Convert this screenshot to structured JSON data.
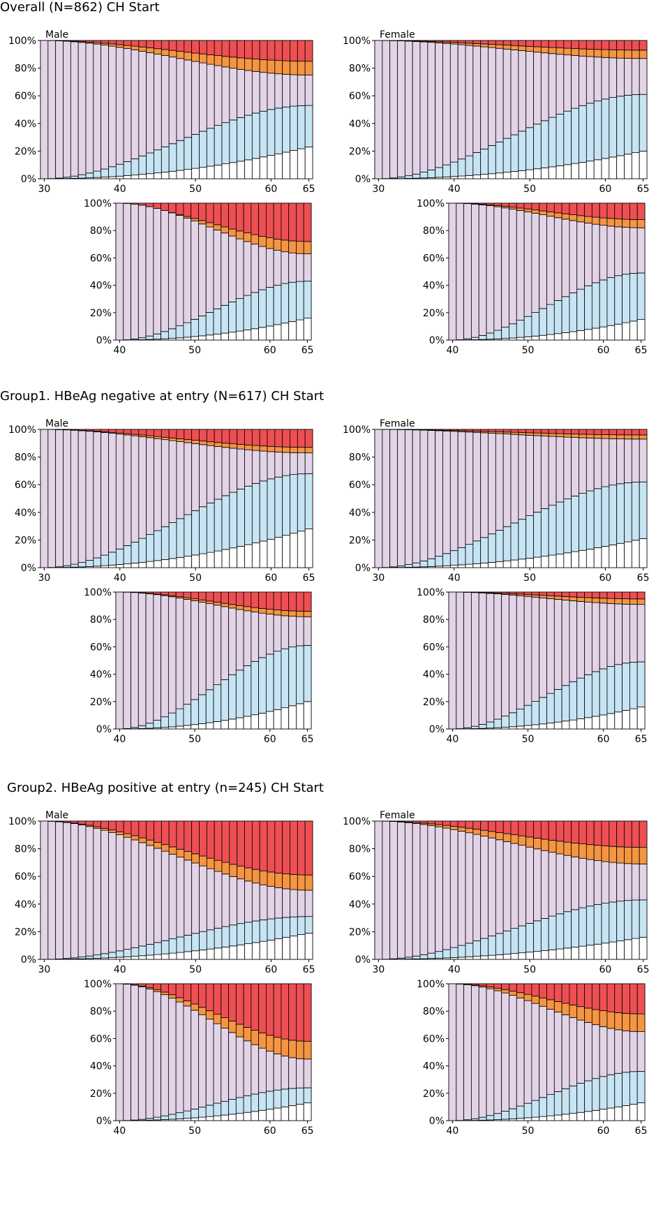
{
  "sections": [
    {
      "title": "Overall  (N=862)  CH Start"
    },
    {
      "title": "Group1. HBeAg negative at entry (N=617)  CH Start"
    },
    {
      "title": "Group2. HBeAg positive at entry (n=245) CH Start"
    }
  ],
  "colors": {
    "white": "#ffffff",
    "blue": "#c7e4f4",
    "lavender": "#e3d3e7",
    "orange": "#f59542",
    "red": "#ee4f53"
  },
  "chart_data": [
    {
      "type": "bar",
      "stacked": true,
      "section": 0,
      "row": 0,
      "sex": "Male",
      "label": "Male",
      "x_start": 30,
      "x_end": 65,
      "x_ticks": [
        30,
        40,
        50,
        60,
        65
      ],
      "y_ticks": [
        "0%",
        "20%",
        "40%",
        "60%",
        "80%",
        "100%"
      ],
      "ylim": [
        0,
        100
      ],
      "series_values": {
        "white": [
          0,
          23
        ],
        "blue": [
          0,
          53
        ],
        "lavender": [
          100,
          75
        ],
        "orange": [
          100,
          85
        ]
      }
    },
    {
      "type": "bar",
      "stacked": true,
      "section": 0,
      "row": 0,
      "sex": "Female",
      "label": "Female",
      "x_start": 30,
      "x_end": 65,
      "x_ticks": [
        30,
        40,
        50,
        60,
        65
      ],
      "y_ticks": [
        "0%",
        "20%",
        "40%",
        "60%",
        "80%",
        "100%"
      ],
      "ylim": [
        0,
        100
      ],
      "series_values": {
        "white": [
          0,
          20
        ],
        "blue": [
          0,
          61
        ],
        "lavender": [
          100,
          87
        ],
        "orange": [
          100,
          93
        ]
      }
    },
    {
      "type": "bar",
      "stacked": true,
      "section": 0,
      "row": 1,
      "sex": "Male",
      "label": "",
      "x_start": 40,
      "x_end": 65,
      "x_ticks": [
        40,
        50,
        60,
        65
      ],
      "y_ticks": [
        "0%",
        "20%",
        "40%",
        "60%",
        "80%",
        "100%"
      ],
      "ylim": [
        0,
        100
      ],
      "series_values": {
        "white": [
          0,
          16
        ],
        "blue": [
          0,
          43
        ],
        "lavender": [
          100,
          63
        ],
        "orange": [
          98,
          72
        ]
      }
    },
    {
      "type": "bar",
      "stacked": true,
      "section": 0,
      "row": 1,
      "sex": "Female",
      "label": "",
      "x_start": 40,
      "x_end": 65,
      "x_ticks": [
        40,
        50,
        60,
        65
      ],
      "y_ticks": [
        "0%",
        "20%",
        "40%",
        "60%",
        "80%",
        "100%"
      ],
      "ylim": [
        0,
        100
      ],
      "series_values": {
        "white": [
          0,
          15
        ],
        "blue": [
          0,
          49
        ],
        "lavender": [
          100,
          82
        ],
        "orange": [
          100,
          88
        ]
      }
    },
    {
      "type": "bar",
      "stacked": true,
      "section": 1,
      "row": 0,
      "sex": "Male",
      "label": "Male",
      "x_start": 30,
      "x_end": 65,
      "x_ticks": [
        30,
        40,
        50,
        60,
        65
      ],
      "y_ticks": [
        "0%",
        "20%",
        "40%",
        "60%",
        "80%",
        "100%"
      ],
      "ylim": [
        0,
        100
      ],
      "series_values": {
        "white": [
          0,
          28
        ],
        "blue": [
          0,
          68
        ],
        "lavender": [
          100,
          83
        ],
        "orange": [
          100,
          87
        ]
      }
    },
    {
      "type": "bar",
      "stacked": true,
      "section": 1,
      "row": 0,
      "sex": "Female",
      "label": "Female",
      "x_start": 30,
      "x_end": 65,
      "x_ticks": [
        30,
        40,
        50,
        60,
        65
      ],
      "y_ticks": [
        "0%",
        "20%",
        "40%",
        "60%",
        "80%",
        "100%"
      ],
      "ylim": [
        0,
        100
      ],
      "series_values": {
        "white": [
          0,
          21
        ],
        "blue": [
          0,
          62
        ],
        "lavender": [
          100,
          93
        ],
        "orange": [
          100,
          96
        ]
      }
    },
    {
      "type": "bar",
      "stacked": true,
      "section": 1,
      "row": 1,
      "sex": "Male",
      "label": "",
      "x_start": 40,
      "x_end": 65,
      "x_ticks": [
        40,
        50,
        60,
        65
      ],
      "y_ticks": [
        "0%",
        "20%",
        "40%",
        "60%",
        "80%",
        "100%"
      ],
      "ylim": [
        0,
        100
      ],
      "series_values": {
        "white": [
          0,
          20
        ],
        "blue": [
          0,
          61
        ],
        "lavender": [
          100,
          82
        ],
        "orange": [
          100,
          86
        ]
      }
    },
    {
      "type": "bar",
      "stacked": true,
      "section": 1,
      "row": 1,
      "sex": "Female",
      "label": "",
      "x_start": 40,
      "x_end": 65,
      "x_ticks": [
        40,
        50,
        60,
        65
      ],
      "y_ticks": [
        "0%",
        "20%",
        "40%",
        "60%",
        "80%",
        "100%"
      ],
      "ylim": [
        0,
        100
      ],
      "series_values": {
        "white": [
          0,
          16
        ],
        "blue": [
          0,
          49
        ],
        "lavender": [
          100,
          91
        ],
        "orange": [
          100,
          95
        ]
      }
    },
    {
      "type": "bar",
      "stacked": true,
      "section": 2,
      "row": 0,
      "sex": "Male",
      "label": "Male",
      "x_start": 30,
      "x_end": 65,
      "x_ticks": [
        30,
        40,
        50,
        60,
        65
      ],
      "y_ticks": [
        "0%",
        "20%",
        "40%",
        "60%",
        "80%",
        "100%"
      ],
      "ylim": [
        0,
        100
      ],
      "series_values": {
        "white": [
          0,
          19
        ],
        "blue": [
          0,
          31
        ],
        "lavender": [
          100,
          50
        ],
        "orange": [
          100,
          61
        ]
      }
    },
    {
      "type": "bar",
      "stacked": true,
      "section": 2,
      "row": 0,
      "sex": "Female",
      "label": "Female",
      "x_start": 30,
      "x_end": 65,
      "x_ticks": [
        30,
        40,
        50,
        60,
        65
      ],
      "y_ticks": [
        "0%",
        "20%",
        "40%",
        "60%",
        "80%",
        "100%"
      ],
      "ylim": [
        0,
        100
      ],
      "series_values": {
        "white": [
          0,
          16
        ],
        "blue": [
          0,
          43
        ],
        "lavender": [
          100,
          69
        ],
        "orange": [
          100,
          81
        ]
      }
    },
    {
      "type": "bar",
      "stacked": true,
      "section": 2,
      "row": 1,
      "sex": "Male",
      "label": "",
      "x_start": 40,
      "x_end": 65,
      "x_ticks": [
        40,
        50,
        60,
        65
      ],
      "y_ticks": [
        "0%",
        "20%",
        "40%",
        "60%",
        "80%",
        "100%"
      ],
      "ylim": [
        0,
        100
      ],
      "series_values": {
        "white": [
          0,
          13
        ],
        "blue": [
          0,
          24
        ],
        "lavender": [
          100,
          45
        ],
        "orange": [
          100,
          58
        ]
      }
    },
    {
      "type": "bar",
      "stacked": true,
      "section": 2,
      "row": 1,
      "sex": "Female",
      "label": "",
      "x_start": 40,
      "x_end": 65,
      "x_ticks": [
        40,
        50,
        60,
        65
      ],
      "y_ticks": [
        "0%",
        "20%",
        "40%",
        "60%",
        "80%",
        "100%"
      ],
      "ylim": [
        0,
        100
      ],
      "series_values": {
        "white": [
          0,
          13
        ],
        "blue": [
          0,
          36
        ],
        "lavender": [
          100,
          65
        ],
        "orange": [
          100,
          78
        ]
      }
    }
  ]
}
